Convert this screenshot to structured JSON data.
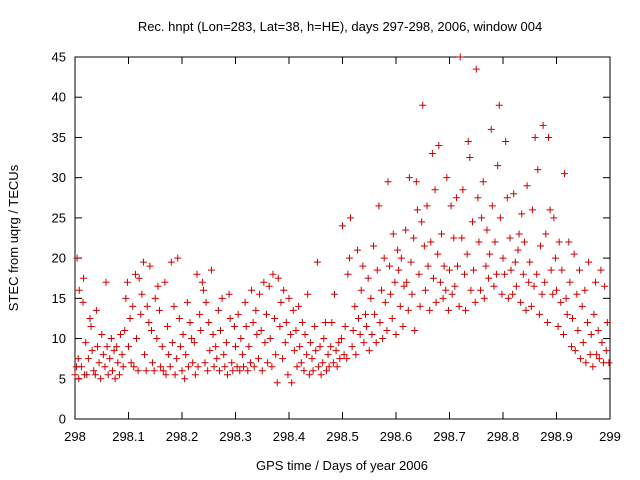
{
  "chart_data": {
    "type": "scatter",
    "title": "Rec. hnpt (Lon=283, Lat=38, h=HE), days 297-298, 2006, window 004",
    "xlabel": "GPS time / Days of year 2006",
    "ylabel": "STEC from uqrg / TECUs",
    "xlim": [
      298,
      299
    ],
    "ylim": [
      0,
      45
    ],
    "x_ticks": [
      298,
      298.1,
      298.2,
      298.3,
      298.4,
      298.5,
      298.6,
      298.7,
      298.8,
      298.9,
      299
    ],
    "x_tick_labels": [
      "298",
      "298.1",
      "298.2",
      "298.3",
      "298.4",
      "298.5",
      "298.6",
      "298.7",
      "298.8",
      "298.9",
      "299"
    ],
    "y_ticks": [
      0,
      5,
      10,
      15,
      20,
      25,
      30,
      35,
      40,
      45
    ],
    "y_tick_labels": [
      "0",
      "5",
      "10",
      "15",
      "20",
      "25",
      "30",
      "35",
      "40",
      "45"
    ],
    "grid": false,
    "marker": "plus",
    "color": "#cc0000",
    "points": [
      [
        298.0,
        5.5
      ],
      [
        298.003,
        6.5
      ],
      [
        298.004,
        20.0
      ],
      [
        298.006,
        7.5
      ],
      [
        298.007,
        5.0
      ],
      [
        298.008,
        16.0
      ],
      [
        298.012,
        6.5
      ],
      [
        298.015,
        14.5
      ],
      [
        298.016,
        17.5
      ],
      [
        298.018,
        5.5
      ],
      [
        298.02,
        9.5
      ],
      [
        298.022,
        5.5
      ],
      [
        298.025,
        7.5
      ],
      [
        298.028,
        12.5
      ],
      [
        298.03,
        11.5
      ],
      [
        298.032,
        8.5
      ],
      [
        298.035,
        6.0
      ],
      [
        298.038,
        5.5
      ],
      [
        298.04,
        13.5
      ],
      [
        298.042,
        9.0
      ],
      [
        298.045,
        7.0
      ],
      [
        298.048,
        5.0
      ],
      [
        298.05,
        10.5
      ],
      [
        298.053,
        8.0
      ],
      [
        298.056,
        6.5
      ],
      [
        298.058,
        17.0
      ],
      [
        298.06,
        9.0
      ],
      [
        298.062,
        5.5
      ],
      [
        298.065,
        7.5
      ],
      [
        298.068,
        10.0
      ],
      [
        298.07,
        6.0
      ],
      [
        298.073,
        8.5
      ],
      [
        298.075,
        5.0
      ],
      [
        298.078,
        9.0
      ],
      [
        298.08,
        7.0
      ],
      [
        298.083,
        5.5
      ],
      [
        298.085,
        10.5
      ],
      [
        298.088,
        8.0
      ],
      [
        298.09,
        6.5
      ],
      [
        298.093,
        11.0
      ],
      [
        298.095,
        15.0
      ],
      [
        298.098,
        17.0
      ],
      [
        298.1,
        9.0
      ],
      [
        298.103,
        12.5
      ],
      [
        298.105,
        7.0
      ],
      [
        298.108,
        14.0
      ],
      [
        298.11,
        6.5
      ],
      [
        298.113,
        18.0
      ],
      [
        298.115,
        10.0
      ],
      [
        298.118,
        6.0
      ],
      [
        298.12,
        17.5
      ],
      [
        298.123,
        13.0
      ],
      [
        298.125,
        15.5
      ],
      [
        298.128,
        19.5
      ],
      [
        298.13,
        8.0
      ],
      [
        298.133,
        6.0
      ],
      [
        298.135,
        14.0
      ],
      [
        298.138,
        12.0
      ],
      [
        298.14,
        19.0
      ],
      [
        298.143,
        11.0
      ],
      [
        298.145,
        7.0
      ],
      [
        298.148,
        6.0
      ],
      [
        298.15,
        15.0
      ],
      [
        298.153,
        10.0
      ],
      [
        298.155,
        16.5
      ],
      [
        298.158,
        13.5
      ],
      [
        298.16,
        6.5
      ],
      [
        298.163,
        9.0
      ],
      [
        298.165,
        6.0
      ],
      [
        298.168,
        17.0
      ],
      [
        298.17,
        5.5
      ],
      [
        298.173,
        11.5
      ],
      [
        298.175,
        8.0
      ],
      [
        298.178,
        6.5
      ],
      [
        298.18,
        19.5
      ],
      [
        298.182,
        9.5
      ],
      [
        298.185,
        14.0
      ],
      [
        298.187,
        5.5
      ],
      [
        298.19,
        7.5
      ],
      [
        298.192,
        20.0
      ],
      [
        298.195,
        12.5
      ],
      [
        298.197,
        9.0
      ],
      [
        298.2,
        6.0
      ],
      [
        298.202,
        10.5
      ],
      [
        298.205,
        5.0
      ],
      [
        298.207,
        8.0
      ],
      [
        298.21,
        14.5
      ],
      [
        298.212,
        6.5
      ],
      [
        298.215,
        12.0
      ],
      [
        298.218,
        10.0
      ],
      [
        298.22,
        7.0
      ],
      [
        298.223,
        9.5
      ],
      [
        298.225,
        5.5
      ],
      [
        298.228,
        18.0
      ],
      [
        298.23,
        6.5
      ],
      [
        298.233,
        13.0
      ],
      [
        298.235,
        11.0
      ],
      [
        298.238,
        17.0
      ],
      [
        298.24,
        16.0
      ],
      [
        298.243,
        7.0
      ],
      [
        298.245,
        14.5
      ],
      [
        298.248,
        6.0
      ],
      [
        298.25,
        12.0
      ],
      [
        298.252,
        8.5
      ],
      [
        298.255,
        18.5
      ],
      [
        298.258,
        10.5
      ],
      [
        298.26,
        6.5
      ],
      [
        298.263,
        9.0
      ],
      [
        298.265,
        7.5
      ],
      [
        298.268,
        13.5
      ],
      [
        298.27,
        6.0
      ],
      [
        298.272,
        11.0
      ],
      [
        298.275,
        15.0
      ],
      [
        298.278,
        8.0
      ],
      [
        298.28,
        6.5
      ],
      [
        298.283,
        9.5
      ],
      [
        298.285,
        5.5
      ],
      [
        298.288,
        15.5
      ],
      [
        298.29,
        12.5
      ],
      [
        298.293,
        7.0
      ],
      [
        298.295,
        6.0
      ],
      [
        298.298,
        11.5
      ],
      [
        298.3,
        9.0
      ],
      [
        298.303,
        6.5
      ],
      [
        298.305,
        13.0
      ],
      [
        298.308,
        6.0
      ],
      [
        298.31,
        10.0
      ],
      [
        298.313,
        8.0
      ],
      [
        298.315,
        6.5
      ],
      [
        298.318,
        14.5
      ],
      [
        298.32,
        11.5
      ],
      [
        298.323,
        6.0
      ],
      [
        298.325,
        9.0
      ],
      [
        298.328,
        7.0
      ],
      [
        298.33,
        16.0
      ],
      [
        298.333,
        12.0
      ],
      [
        298.335,
        6.5
      ],
      [
        298.338,
        13.5
      ],
      [
        298.34,
        10.5
      ],
      [
        298.343,
        7.5
      ],
      [
        298.345,
        15.5
      ],
      [
        298.348,
        11.0
      ],
      [
        298.35,
        6.0
      ],
      [
        298.353,
        17.0
      ],
      [
        298.355,
        9.5
      ],
      [
        298.358,
        13.0
      ],
      [
        298.36,
        7.0
      ],
      [
        298.363,
        16.5
      ],
      [
        298.365,
        10.0
      ],
      [
        298.368,
        6.5
      ],
      [
        298.37,
        18.0
      ],
      [
        298.373,
        12.5
      ],
      [
        298.375,
        8.0
      ],
      [
        298.378,
        4.5
      ],
      [
        298.38,
        17.5
      ],
      [
        298.383,
        11.5
      ],
      [
        298.385,
        14.5
      ],
      [
        298.388,
        7.5
      ],
      [
        298.39,
        16.0
      ],
      [
        298.393,
        9.5
      ],
      [
        298.395,
        12.0
      ],
      [
        298.398,
        5.5
      ],
      [
        298.4,
        15.0
      ],
      [
        298.403,
        10.5
      ],
      [
        298.405,
        4.5
      ],
      [
        298.408,
        13.5
      ],
      [
        298.41,
        8.5
      ],
      [
        298.413,
        11.0
      ],
      [
        298.415,
        6.5
      ],
      [
        298.418,
        14.0
      ],
      [
        298.42,
        9.0
      ],
      [
        298.423,
        7.0
      ],
      [
        298.425,
        12.0
      ],
      [
        298.428,
        6.0
      ],
      [
        298.43,
        10.5
      ],
      [
        298.433,
        8.0
      ],
      [
        298.435,
        15.5
      ],
      [
        298.438,
        5.5
      ],
      [
        298.44,
        9.5
      ],
      [
        298.443,
        7.5
      ],
      [
        298.445,
        6.0
      ],
      [
        298.448,
        11.5
      ],
      [
        298.45,
        8.5
      ],
      [
        298.453,
        19.5
      ],
      [
        298.455,
        6.5
      ],
      [
        298.458,
        9.0
      ],
      [
        298.46,
        5.5
      ],
      [
        298.463,
        7.0
      ],
      [
        298.465,
        10.0
      ],
      [
        298.468,
        12.0
      ],
      [
        298.47,
        6.0
      ],
      [
        298.473,
        8.0
      ],
      [
        298.475,
        6.5
      ],
      [
        298.478,
        9.0
      ],
      [
        298.48,
        12.0
      ],
      [
        298.483,
        7.0
      ],
      [
        298.485,
        15.5
      ],
      [
        298.488,
        8.5
      ],
      [
        298.49,
        6.5
      ],
      [
        298.493,
        9.5
      ],
      [
        298.495,
        7.5
      ],
      [
        298.498,
        10.0
      ],
      [
        298.5,
        24.0
      ],
      [
        298.503,
        8.0
      ],
      [
        298.505,
        11.5
      ],
      [
        298.508,
        7.5
      ],
      [
        298.51,
        18.0
      ],
      [
        298.513,
        20.0
      ],
      [
        298.515,
        25.0
      ],
      [
        298.518,
        9.0
      ],
      [
        298.52,
        11.0
      ],
      [
        298.523,
        14.0
      ],
      [
        298.525,
        8.0
      ],
      [
        298.528,
        21.0
      ],
      [
        298.53,
        12.5
      ],
      [
        298.533,
        10.5
      ],
      [
        298.535,
        16.0
      ],
      [
        298.538,
        19.0
      ],
      [
        298.54,
        9.5
      ],
      [
        298.543,
        13.0
      ],
      [
        298.545,
        11.5
      ],
      [
        298.548,
        17.5
      ],
      [
        298.55,
        8.5
      ],
      [
        298.553,
        15.0
      ],
      [
        298.555,
        10.5
      ],
      [
        298.558,
        21.5
      ],
      [
        298.56,
        13.0
      ],
      [
        298.563,
        9.5
      ],
      [
        298.565,
        18.5
      ],
      [
        298.568,
        26.5
      ],
      [
        298.57,
        12.0
      ],
      [
        298.573,
        16.0
      ],
      [
        298.575,
        10.0
      ],
      [
        298.578,
        20.0
      ],
      [
        298.58,
        14.5
      ],
      [
        298.583,
        11.0
      ],
      [
        298.585,
        29.5
      ],
      [
        298.588,
        19.0
      ],
      [
        298.59,
        15.5
      ],
      [
        298.593,
        12.5
      ],
      [
        298.595,
        23.0
      ],
      [
        298.598,
        17.0
      ],
      [
        298.6,
        10.5
      ],
      [
        298.603,
        21.0
      ],
      [
        298.605,
        18.5
      ],
      [
        298.608,
        14.0
      ],
      [
        298.61,
        20.0
      ],
      [
        298.613,
        11.5
      ],
      [
        298.615,
        16.5
      ],
      [
        298.618,
        23.5
      ],
      [
        298.62,
        17.0
      ],
      [
        298.623,
        13.5
      ],
      [
        298.625,
        30.0
      ],
      [
        298.628,
        19.5
      ],
      [
        298.63,
        15.5
      ],
      [
        298.633,
        22.5
      ],
      [
        298.635,
        11.0
      ],
      [
        298.638,
        29.5
      ],
      [
        298.64,
        26.0
      ],
      [
        298.643,
        18.0
      ],
      [
        298.645,
        14.0
      ],
      [
        298.648,
        24.5
      ],
      [
        298.65,
        39.0
      ],
      [
        298.653,
        21.5
      ],
      [
        298.655,
        16.0
      ],
      [
        298.658,
        26.5
      ],
      [
        298.66,
        19.0
      ],
      [
        298.663,
        13.5
      ],
      [
        298.665,
        22.0
      ],
      [
        298.668,
        33.0
      ],
      [
        298.67,
        17.5
      ],
      [
        298.673,
        28.5
      ],
      [
        298.675,
        14.5
      ],
      [
        298.678,
        20.5
      ],
      [
        298.68,
        34.0
      ],
      [
        298.683,
        17.0
      ],
      [
        298.685,
        23.0
      ],
      [
        298.688,
        15.0
      ],
      [
        298.69,
        19.0
      ],
      [
        298.693,
        16.0
      ],
      [
        298.695,
        30.0
      ],
      [
        298.698,
        13.5
      ],
      [
        298.7,
        18.5
      ],
      [
        298.703,
        26.5
      ],
      [
        298.705,
        15.5
      ],
      [
        298.708,
        22.5
      ],
      [
        298.71,
        16.5
      ],
      [
        298.713,
        27.5
      ],
      [
        298.715,
        19.0
      ],
      [
        298.718,
        14.0
      ],
      [
        298.72,
        45.0
      ],
      [
        298.723,
        22.5
      ],
      [
        298.725,
        28.5
      ],
      [
        298.728,
        18.0
      ],
      [
        298.73,
        13.5
      ],
      [
        298.733,
        20.5
      ],
      [
        298.735,
        34.5
      ],
      [
        298.738,
        32.5
      ],
      [
        298.74,
        16.0
      ],
      [
        298.743,
        24.5
      ],
      [
        298.745,
        18.5
      ],
      [
        298.748,
        14.5
      ],
      [
        298.75,
        43.5
      ],
      [
        298.753,
        27.5
      ],
      [
        298.755,
        22.0
      ],
      [
        298.758,
        16.0
      ],
      [
        298.76,
        25.0
      ],
      [
        298.763,
        29.5
      ],
      [
        298.765,
        15.0
      ],
      [
        298.768,
        19.0
      ],
      [
        298.77,
        23.5
      ],
      [
        298.773,
        17.5
      ],
      [
        298.775,
        20.5
      ],
      [
        298.778,
        36.0
      ],
      [
        298.78,
        26.5
      ],
      [
        298.783,
        16.5
      ],
      [
        298.785,
        22.0
      ],
      [
        298.788,
        18.0
      ],
      [
        298.79,
        31.5
      ],
      [
        298.793,
        39.0
      ],
      [
        298.795,
        25.0
      ],
      [
        298.798,
        15.5
      ],
      [
        298.8,
        20.0
      ],
      [
        298.803,
        18.0
      ],
      [
        298.805,
        34.5
      ],
      [
        298.808,
        27.5
      ],
      [
        298.81,
        15.0
      ],
      [
        298.813,
        22.5
      ],
      [
        298.815,
        18.5
      ],
      [
        298.818,
        15.5
      ],
      [
        298.82,
        28.0
      ],
      [
        298.823,
        19.5
      ],
      [
        298.825,
        16.5
      ],
      [
        298.828,
        21.0
      ],
      [
        298.83,
        23.0
      ],
      [
        298.833,
        14.5
      ],
      [
        298.835,
        25.5
      ],
      [
        298.838,
        18.0
      ],
      [
        298.84,
        22.0
      ],
      [
        298.843,
        13.5
      ],
      [
        298.845,
        29.0
      ],
      [
        298.848,
        17.0
      ],
      [
        298.85,
        19.5
      ],
      [
        298.853,
        14.0
      ],
      [
        298.855,
        26.0
      ],
      [
        298.858,
        16.5
      ],
      [
        298.86,
        35.0
      ],
      [
        298.863,
        18.0
      ],
      [
        298.865,
        31.0
      ],
      [
        298.868,
        13.0
      ],
      [
        298.87,
        21.5
      ],
      [
        298.873,
        15.5
      ],
      [
        298.875,
        36.5
      ],
      [
        298.878,
        17.0
      ],
      [
        298.88,
        23.0
      ],
      [
        298.883,
        12.0
      ],
      [
        298.885,
        35.0
      ],
      [
        298.888,
        26.0
      ],
      [
        298.89,
        18.5
      ],
      [
        298.893,
        15.5
      ],
      [
        298.895,
        25.0
      ],
      [
        298.898,
        20.0
      ],
      [
        298.9,
        16.0
      ],
      [
        298.903,
        11.5
      ],
      [
        298.905,
        22.0
      ],
      [
        298.908,
        14.5
      ],
      [
        298.91,
        18.5
      ],
      [
        298.913,
        10.5
      ],
      [
        298.915,
        30.5
      ],
      [
        298.918,
        15.0
      ],
      [
        298.92,
        13.0
      ],
      [
        298.923,
        22.0
      ],
      [
        298.925,
        17.0
      ],
      [
        298.928,
        9.0
      ],
      [
        298.93,
        12.5
      ],
      [
        298.933,
        20.5
      ],
      [
        298.935,
        8.5
      ],
      [
        298.938,
        15.5
      ],
      [
        298.94,
        11.0
      ],
      [
        298.943,
        18.5
      ],
      [
        298.945,
        7.5
      ],
      [
        298.948,
        14.0
      ],
      [
        298.95,
        9.5
      ],
      [
        298.953,
        16.0
      ],
      [
        298.955,
        7.0
      ],
      [
        298.958,
        12.0
      ],
      [
        298.96,
        19.5
      ],
      [
        298.963,
        8.0
      ],
      [
        298.965,
        10.5
      ],
      [
        298.968,
        6.5
      ],
      [
        298.97,
        13.0
      ],
      [
        298.973,
        17.0
      ],
      [
        298.975,
        8.0
      ],
      [
        298.978,
        11.0
      ],
      [
        298.98,
        7.5
      ],
      [
        298.983,
        18.5
      ],
      [
        298.985,
        9.5
      ],
      [
        298.988,
        7.0
      ],
      [
        298.99,
        16.5
      ],
      [
        298.993,
        8.5
      ],
      [
        298.995,
        12.0
      ],
      [
        298.998,
        7.0
      ]
    ]
  }
}
